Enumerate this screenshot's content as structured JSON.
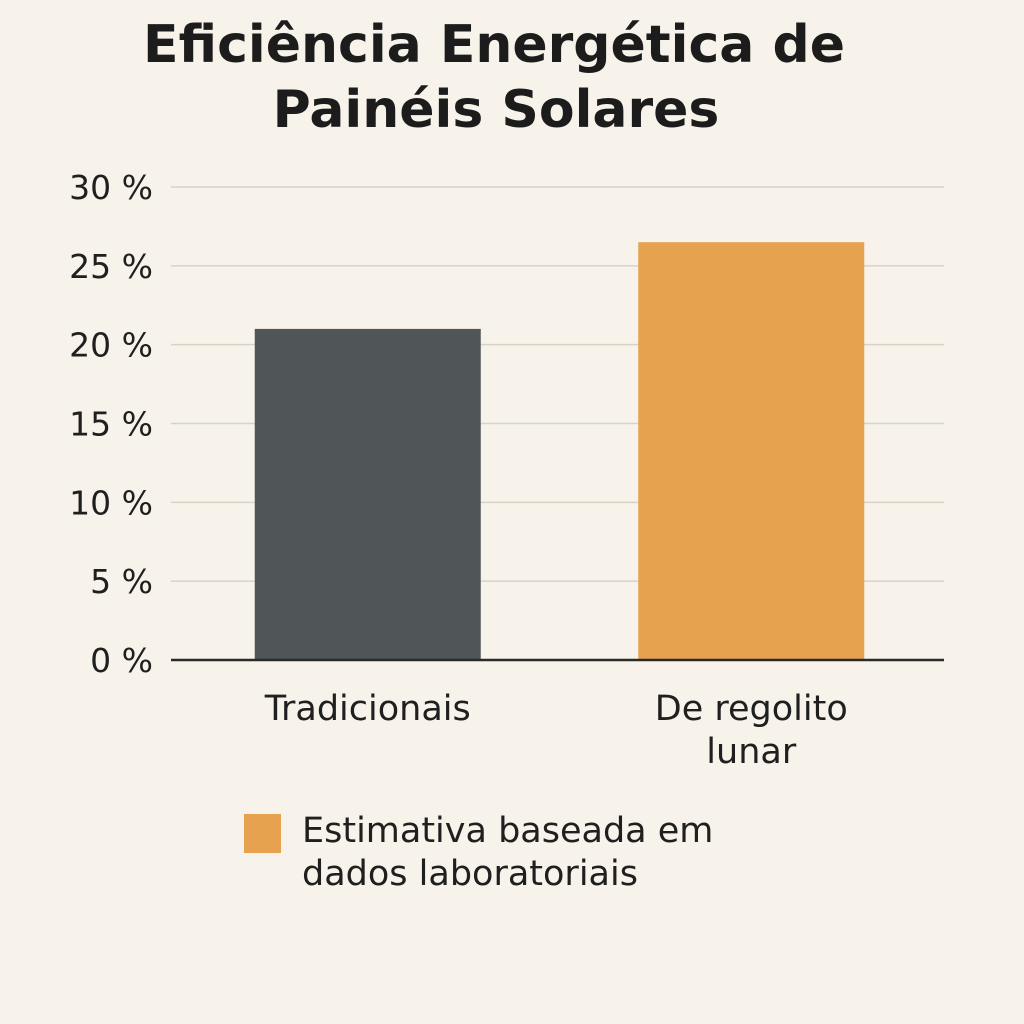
{
  "chart_data": {
    "type": "bar",
    "title": "Eficiência Energética de Painéis Solares",
    "title_lines": [
      "Eficiência Energética de",
      "Painéis Solares"
    ],
    "categories": [
      "Tradicionais",
      "De regolito lunar"
    ],
    "category_lines": [
      [
        "Tradicionais"
      ],
      [
        "De regolito",
        "lunar"
      ]
    ],
    "values": [
      21,
      26.5
    ],
    "unit": "%",
    "ylim": [
      0,
      30
    ],
    "yticks": [
      0,
      5,
      10,
      15,
      20,
      25,
      30
    ],
    "ytick_labels": [
      "0 %",
      "5 %",
      "10 %",
      "15 %",
      "20 %",
      "25 %",
      "30 %"
    ],
    "bar_colors": [
      "#505558",
      "#e6a24f"
    ],
    "grid": true,
    "legend": {
      "position": "bottom",
      "entries": [
        {
          "label": "Estimativa baseada em dados laboratoriais",
          "label_lines": [
            "Estimativa baseada em",
            "dados laboratoriais"
          ],
          "color": "#e6a24f"
        }
      ]
    }
  },
  "colors": {
    "background": "#f7f3eb",
    "text": "#1c1c1c",
    "grid": "#d6d4c9",
    "axis": "#2a2a2a"
  }
}
